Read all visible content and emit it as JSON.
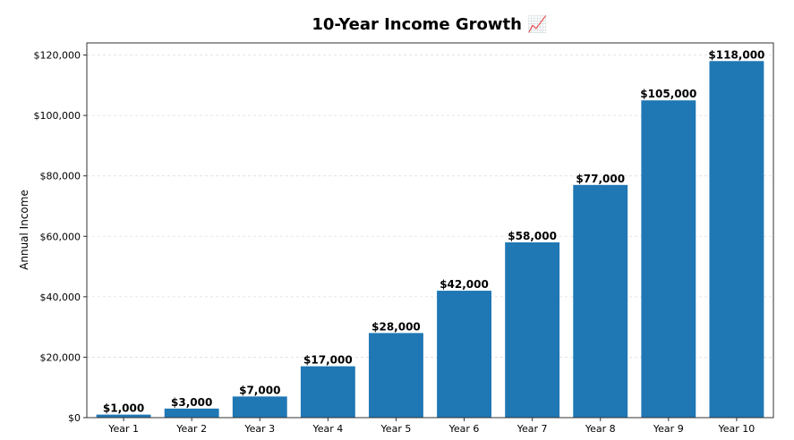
{
  "chart_data": {
    "type": "bar",
    "title": "10-Year Income Growth 📈",
    "xlabel": "",
    "ylabel": "Annual Income",
    "categories": [
      "Year 1",
      "Year 2",
      "Year 3",
      "Year 4",
      "Year 5",
      "Year 6",
      "Year 7",
      "Year 8",
      "Year 9",
      "Year 10"
    ],
    "values": [
      1000,
      3000,
      7000,
      17000,
      28000,
      42000,
      58000,
      77000,
      105000,
      118000
    ],
    "data_labels": [
      "$1,000",
      "$3,000",
      "$7,000",
      "$17,000",
      "$28,000",
      "$42,000",
      "$58,000",
      "$77,000",
      "$105,000",
      "$118,000"
    ],
    "ylim": [
      0,
      124000
    ],
    "yticks": [
      0,
      20000,
      40000,
      60000,
      80000,
      100000,
      120000
    ],
    "ytick_labels": [
      "$0",
      "$20,000",
      "$40,000",
      "$60,000",
      "$80,000",
      "$100,000",
      "$120,000"
    ],
    "grid": true,
    "grid_axis": "y",
    "legend": "none",
    "colors": {
      "bar": "#1f77b4",
      "grid": "#dddddd",
      "axis": "#333333",
      "text": "#000000"
    }
  }
}
